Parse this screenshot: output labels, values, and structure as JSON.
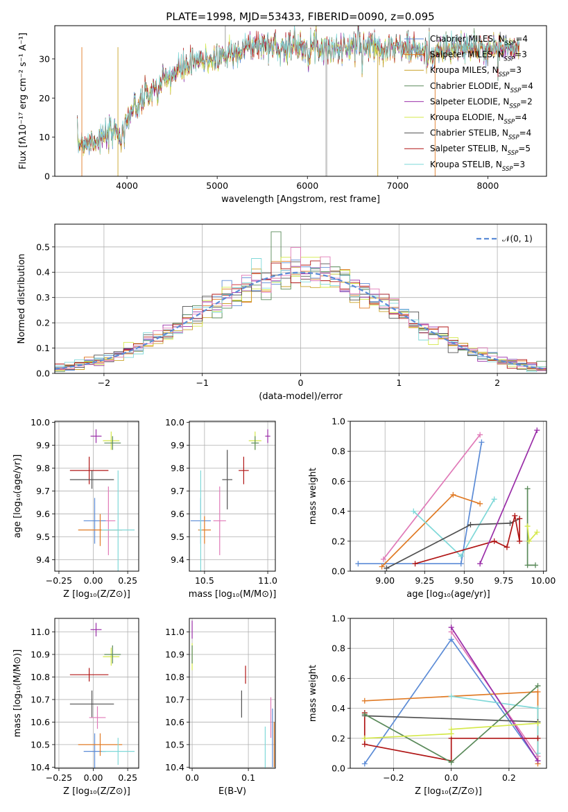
{
  "chart_data": [
    {
      "type": "line",
      "title": "PLATE=1998, MJD=53433, FIBERID=0090, z=0.095",
      "xlabel": "wavelength [Angstrom, rest frame]",
      "ylabel": "Flux [fλ10⁻¹⁷ erg cm⁻² s⁻¹ A⁻¹]",
      "xlim": [
        3200,
        8650
      ],
      "ylim": [
        0,
        38.5
      ],
      "xticks": [
        4000,
        5000,
        6000,
        7000,
        8000
      ],
      "yticks": [
        0,
        10,
        20,
        30
      ],
      "grid": false,
      "legend_placement": "upper right",
      "spectrum_anchors_x": [
        3450,
        3700,
        3950,
        4000,
        4150,
        4300,
        4500,
        4700,
        4900,
        5100,
        5300,
        5500,
        5700,
        5900,
        6100,
        6300,
        6500,
        6700,
        6900,
        7100,
        7300,
        7500,
        7700,
        7900,
        8100,
        8350
      ],
      "spectrum_anchors_y": [
        8.5,
        9.5,
        12,
        15,
        19,
        22,
        26,
        28.5,
        30,
        31,
        33,
        33.5,
        33,
        33.5,
        33.2,
        32.5,
        33,
        33.5,
        33,
        32.8,
        31.5,
        32,
        33,
        32.5,
        32.8,
        32.5
      ],
      "series": [
        {
          "name": "Chabrier MILES, N_SSP=4",
          "color": "#5b8bd6"
        },
        {
          "name": "Salpeter MILES, N_SSP=3",
          "color": "#e07a24"
        },
        {
          "name": "Kroupa MILES, N_SSP=3",
          "color": "#c9a227"
        },
        {
          "name": "Chabrier ELODIE, N_SSP=4",
          "color": "#5a8a5a"
        },
        {
          "name": "Salpeter ELODIE, N_SSP=2",
          "color": "#9a2ea8"
        },
        {
          "name": "Kroupa ELODIE, N_SSP=4",
          "color": "#d4e84a"
        },
        {
          "name": "Chabrier STELIB, N_SSP=4",
          "color": "#505050"
        },
        {
          "name": "Salpeter STELIB, N_SSP=5",
          "color": "#b01515"
        },
        {
          "name": "Kroupa STELIB, N_SSP=3",
          "color": "#7fd8d8"
        }
      ],
      "legend": [
        {
          "pre": "Chabrier MILES, N",
          "sub": "SSP",
          "post": "=4"
        },
        {
          "pre": "Salpeter MILES, N",
          "sub": "SSP",
          "post": "=3"
        },
        {
          "pre": "Kroupa MILES, N",
          "sub": "SSP",
          "post": "=3"
        },
        {
          "pre": "Chabrier ELODIE, N",
          "sub": "SSP",
          "post": "=4"
        },
        {
          "pre": "Salpeter ELODIE, N",
          "sub": "SSP",
          "post": "=2"
        },
        {
          "pre": "Kroupa ELODIE, N",
          "sub": "SSP",
          "post": "=4"
        },
        {
          "pre": "Chabrier STELIB, N",
          "sub": "SSP",
          "post": "=4"
        },
        {
          "pre": "Salpeter STELIB, N",
          "sub": "SSP",
          "post": "=5"
        },
        {
          "pre": "Kroupa STELIB, N",
          "sub": "SSP",
          "post": "=3"
        }
      ]
    },
    {
      "type": "line",
      "xlabel": "(data-model)/error",
      "ylabel": "Normed distribution",
      "xlim": [
        -2.5,
        2.5
      ],
      "ylim": [
        0,
        0.59
      ],
      "xticks": [
        -2,
        -1,
        0,
        1,
        2
      ],
      "yticks": [
        0.0,
        0.1,
        0.2,
        0.3,
        0.4,
        0.5
      ],
      "grid": true,
      "legend_placement": "upper right",
      "legend": "𝒩(0, 1)",
      "normal_curve": {
        "mu": 0,
        "sigma": 1,
        "color": "#5b8bd6"
      },
      "bin_width": 0.1,
      "bin_start": -2.5,
      "series_colors": [
        "#5b8bd6",
        "#e07a24",
        "#c9a227",
        "#5a8a5a",
        "#9a2ea8",
        "#d4e84a",
        "#505050",
        "#b01515",
        "#7fd8d8",
        "#e07ab8"
      ]
    },
    {
      "type": "scatter",
      "xlabel": "Z [log₁₀(Z/Z⊙)]",
      "ylabel": "age  [log₁₀(age/yr)]",
      "xlim": [
        -0.28,
        0.33
      ],
      "ylim": [
        9.35,
        10.005
      ],
      "xticks": [
        -0.25,
        0.0,
        0.25
      ],
      "yticks": [
        9.4,
        9.5,
        9.6,
        9.7,
        9.8,
        9.9,
        10.0
      ],
      "grid": true,
      "points": [
        {
          "x": 0.02,
          "y": 9.94,
          "xerr": 0.04,
          "yerr": 0.03,
          "color": "#9a2ea8"
        },
        {
          "x": 0.13,
          "y": 9.92,
          "xerr": 0.06,
          "yerr": 0.04,
          "color": "#d4e84a"
        },
        {
          "x": 0.14,
          "y": 9.91,
          "xerr": 0.06,
          "yerr": 0.03,
          "color": "#5a8a5a"
        },
        {
          "x": -0.03,
          "y": 9.79,
          "xerr": 0.14,
          "yerr": 0.06,
          "color": "#b01515"
        },
        {
          "x": -0.01,
          "y": 9.75,
          "xerr": 0.16,
          "yerr": 0.04,
          "color": "#505050"
        },
        {
          "x": 0.11,
          "y": 9.57,
          "xerr": 0.05,
          "yerr": 0.15,
          "color": "#e07ab8"
        },
        {
          "x": 0.01,
          "y": 9.57,
          "xerr": 0.08,
          "yerr": 0.1,
          "color": "#5b8bd6"
        },
        {
          "x": 0.05,
          "y": 9.53,
          "xerr": 0.16,
          "yerr": 0.07,
          "color": "#e07a24"
        },
        {
          "x": 0.18,
          "y": 9.53,
          "xerr": 0.12,
          "yerr": 0.26,
          "color": "#7fd8d8"
        }
      ]
    },
    {
      "type": "scatter",
      "xlabel": "mass [log₁₀(M/M⊙)]",
      "ylabel": "",
      "xlim": [
        10.38,
        11.06
      ],
      "ylim": [
        9.35,
        10.005
      ],
      "xticks": [
        10.5,
        11.0
      ],
      "yticks": [
        9.4,
        9.5,
        9.6,
        9.7,
        9.8,
        9.9,
        10.0
      ],
      "grid": true,
      "points": [
        {
          "x": 11.0,
          "y": 9.94,
          "xerr": 0.02,
          "yerr": 0.03,
          "color": "#9a2ea8"
        },
        {
          "x": 10.9,
          "y": 9.92,
          "xerr": 0.05,
          "yerr": 0.04,
          "color": "#d4e84a"
        },
        {
          "x": 10.9,
          "y": 9.91,
          "xerr": 0.03,
          "yerr": 0.03,
          "color": "#5a8a5a"
        },
        {
          "x": 10.81,
          "y": 9.79,
          "xerr": 0.04,
          "yerr": 0.06,
          "color": "#b01515"
        },
        {
          "x": 10.68,
          "y": 9.75,
          "xerr": 0.04,
          "yerr": 0.13,
          "color": "#505050"
        },
        {
          "x": 10.62,
          "y": 9.57,
          "xerr": 0.05,
          "yerr": 0.15,
          "color": "#e07ab8"
        },
        {
          "x": 10.47,
          "y": 9.57,
          "xerr": 0.08,
          "yerr": 0.1,
          "color": "#5b8bd6"
        },
        {
          "x": 10.5,
          "y": 9.53,
          "xerr": 0.05,
          "yerr": 0.06,
          "color": "#e07a24"
        },
        {
          "x": 10.47,
          "y": 9.53,
          "xerr": 0.01,
          "yerr": 0.26,
          "color": "#7fd8d8"
        }
      ]
    },
    {
      "type": "line",
      "xlabel": "age  [log₁₀(age/yr)]",
      "ylabel": "mass weight",
      "xlim": [
        8.78,
        10.02
      ],
      "ylim": [
        0,
        1.0
      ],
      "xticks": [
        9.0,
        9.25,
        9.5,
        9.75,
        10.0
      ],
      "yticks": [
        0.0,
        0.2,
        0.4,
        0.6,
        0.8,
        1.0
      ],
      "grid": true,
      "series": [
        {
          "color": "#5b8bd6",
          "x": [
            8.83,
            9.48,
            9.61
          ],
          "y": [
            0.05,
            0.05,
            0.86
          ]
        },
        {
          "color": "#e07a24",
          "x": [
            8.98,
            9.43,
            9.6
          ],
          "y": [
            0.03,
            0.51,
            0.45
          ]
        },
        {
          "color": "#e07ab8",
          "x": [
            8.99,
            9.6
          ],
          "y": [
            0.08,
            0.91
          ]
        },
        {
          "color": "#7fd8d8",
          "x": [
            9.18,
            9.48,
            9.69
          ],
          "y": [
            0.4,
            0.1,
            0.48
          ]
        },
        {
          "color": "#505050",
          "x": [
            9.01,
            9.54,
            9.79,
            9.85
          ],
          "y": [
            0.02,
            0.31,
            0.32,
            0.35
          ]
        },
        {
          "color": "#b01515",
          "x": [
            9.19,
            9.69,
            9.77,
            9.82,
            9.85,
            9.85
          ],
          "y": [
            0.05,
            0.2,
            0.16,
            0.37,
            0.2,
            0.35
          ]
        },
        {
          "color": "#9a2ea8",
          "x": [
            9.6,
            9.96
          ],
          "y": [
            0.05,
            0.94
          ]
        },
        {
          "color": "#5a8a5a",
          "x": [
            9.9,
            9.9,
            9.95
          ],
          "y": [
            0.55,
            0.04,
            0.04
          ]
        },
        {
          "color": "#d4e84a",
          "x": [
            9.9,
            9.91,
            9.96
          ],
          "y": [
            0.3,
            0.2,
            0.26
          ]
        }
      ]
    },
    {
      "type": "scatter",
      "xlabel": "Z [log₁₀(Z/Z⊙)]",
      "ylabel": "mass [log₁₀(M/M⊙)]",
      "xlim": [
        -0.28,
        0.33
      ],
      "ylim": [
        10.395,
        11.06
      ],
      "xticks": [
        -0.25,
        0.0,
        0.25
      ],
      "yticks": [
        10.4,
        10.5,
        10.6,
        10.7,
        10.8,
        10.9,
        11.0
      ],
      "grid": true,
      "points": [
        {
          "x": 0.02,
          "y": 11.01,
          "xerr": 0.04,
          "yerr": 0.03,
          "color": "#9a2ea8"
        },
        {
          "x": 0.13,
          "y": 10.89,
          "xerr": 0.06,
          "yerr": 0.04,
          "color": "#d4e84a"
        },
        {
          "x": 0.14,
          "y": 10.9,
          "xerr": 0.06,
          "yerr": 0.04,
          "color": "#5a8a5a"
        },
        {
          "x": -0.03,
          "y": 10.81,
          "xerr": 0.14,
          "yerr": 0.03,
          "color": "#b01515"
        },
        {
          "x": -0.01,
          "y": 10.68,
          "xerr": 0.16,
          "yerr": 0.06,
          "color": "#505050"
        },
        {
          "x": 0.03,
          "y": 10.62,
          "xerr": 0.06,
          "yerr": 0.05,
          "color": "#e07ab8"
        },
        {
          "x": 0.01,
          "y": 10.47,
          "xerr": 0.08,
          "yerr": 0.08,
          "color": "#5b8bd6"
        },
        {
          "x": 0.05,
          "y": 10.5,
          "xerr": 0.16,
          "yerr": 0.05,
          "color": "#e07a24"
        },
        {
          "x": 0.18,
          "y": 10.47,
          "xerr": 0.12,
          "yerr": 0.06,
          "color": "#7fd8d8"
        }
      ]
    },
    {
      "type": "scatter",
      "xlabel": "E(B-V)",
      "ylabel": "",
      "xlim": [
        -0.005,
        0.148
      ],
      "ylim": [
        10.395,
        11.06
      ],
      "xticks": [
        0.0,
        0.1
      ],
      "yticks": [
        10.4,
        10.5,
        10.6,
        10.7,
        10.8,
        10.9,
        11.0
      ],
      "grid": true,
      "points": [
        {
          "x": 0.0,
          "y": 11.01,
          "yerr": 0.04,
          "color": "#9a2ea8"
        },
        {
          "x": 0.0,
          "y": 10.89,
          "yerr": 0.06,
          "color": "#d4e84a"
        },
        {
          "x": 0.0,
          "y": 10.9,
          "yerr": 0.04,
          "color": "#5a8a5a"
        },
        {
          "x": 0.095,
          "y": 10.81,
          "yerr": 0.04,
          "color": "#b01515"
        },
        {
          "x": 0.088,
          "y": 10.68,
          "yerr": 0.06,
          "color": "#505050"
        },
        {
          "x": 0.14,
          "y": 10.62,
          "yerr": 0.09,
          "color": "#e07ab8"
        },
        {
          "x": 0.143,
          "y": 10.53,
          "yerr": 0.13,
          "color": "#5b8bd6"
        },
        {
          "x": 0.146,
          "y": 10.5,
          "yerr": 0.1,
          "color": "#e07a24"
        },
        {
          "x": 0.13,
          "y": 10.48,
          "yerr": 0.1,
          "color": "#7fd8d8"
        }
      ]
    },
    {
      "type": "line",
      "xlabel": "Z [log₁₀(Z/Z⊙)]",
      "ylabel": "mass weight",
      "xlim": [
        -0.35,
        0.33
      ],
      "ylim": [
        0,
        1.0
      ],
      "xticks": [
        -0.2,
        0.0,
        0.2
      ],
      "yticks": [
        0.0,
        0.2,
        0.4,
        0.6,
        0.8,
        1.0
      ],
      "grid": true,
      "series": [
        {
          "color": "#5b8bd6",
          "x": [
            -0.3,
            0.0,
            0.3
          ],
          "y": [
            0.03,
            0.86,
            0.05
          ]
        },
        {
          "color": "#e07a24",
          "x": [
            -0.3,
            0.3,
            0.3
          ],
          "y": [
            0.45,
            0.51,
            0.03
          ]
        },
        {
          "color": "#e07ab8",
          "x": [
            0.0,
            0.3
          ],
          "y": [
            0.91,
            0.08
          ]
        },
        {
          "color": "#7fd8d8",
          "x": [
            0.0,
            0.3,
            0.3
          ],
          "y": [
            0.48,
            0.4,
            0.1
          ]
        },
        {
          "color": "#505050",
          "x": [
            -0.3,
            0.3
          ],
          "y": [
            0.35,
            0.31
          ]
        },
        {
          "color": "#b01515",
          "x": [
            -0.3,
            -0.3,
            0.0,
            0.0,
            0.3
          ],
          "y": [
            0.37,
            0.16,
            0.05,
            0.2,
            0.2
          ]
        },
        {
          "color": "#9a2ea8",
          "x": [
            0.0,
            0.3
          ],
          "y": [
            0.94,
            0.05
          ]
        },
        {
          "color": "#5a8a5a",
          "x": [
            -0.3,
            0.0,
            0.3
          ],
          "y": [
            0.36,
            0.04,
            0.55
          ]
        },
        {
          "color": "#d4e84a",
          "x": [
            -0.3,
            0.0,
            0.0,
            0.3
          ],
          "y": [
            0.2,
            0.23,
            0.26,
            0.3
          ]
        }
      ]
    }
  ]
}
